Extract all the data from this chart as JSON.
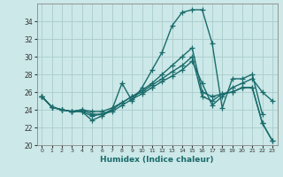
{
  "xlabel": "Humidex (Indice chaleur)",
  "xlim": [
    -0.5,
    23.5
  ],
  "ylim": [
    20,
    36
  ],
  "yticks": [
    20,
    22,
    24,
    26,
    28,
    30,
    32,
    34
  ],
  "xticks": [
    0,
    1,
    2,
    3,
    4,
    5,
    6,
    7,
    8,
    9,
    10,
    11,
    12,
    13,
    14,
    15,
    16,
    17,
    18,
    19,
    20,
    21,
    22,
    23
  ],
  "bg_color": "#cce8e8",
  "grid_color": "#aacccc",
  "line_color": "#1a6b6b",
  "line_width": 1.0,
  "marker": "+",
  "markersize": 4,
  "series": [
    [
      25.5,
      24.3,
      24.0,
      23.8,
      23.8,
      22.8,
      23.3,
      24.0,
      27.0,
      25.0,
      26.5,
      28.5,
      30.5,
      33.5,
      35.0,
      35.3,
      35.3,
      31.5,
      24.2,
      27.5,
      27.5,
      28.0,
      23.5,
      null
    ],
    [
      25.5,
      24.3,
      24.0,
      23.8,
      23.8,
      23.3,
      23.5,
      23.8,
      24.5,
      25.2,
      25.8,
      26.5,
      27.2,
      27.8,
      28.5,
      29.5,
      27.0,
      24.5,
      25.5,
      26.5,
      27.0,
      27.5,
      26.0,
      25.0
    ],
    [
      25.5,
      24.3,
      24.0,
      23.8,
      24.0,
      23.5,
      23.5,
      24.0,
      24.8,
      25.5,
      26.2,
      27.0,
      28.0,
      29.0,
      30.0,
      31.0,
      26.0,
      25.5,
      25.8,
      26.0,
      26.5,
      26.5,
      22.5,
      20.5
    ],
    [
      25.5,
      24.3,
      24.0,
      23.8,
      24.0,
      23.8,
      23.8,
      24.2,
      24.8,
      25.5,
      26.0,
      26.8,
      27.5,
      28.3,
      29.0,
      30.0,
      25.5,
      25.0,
      25.8,
      26.0,
      26.5,
      26.5,
      22.5,
      20.5
    ]
  ]
}
